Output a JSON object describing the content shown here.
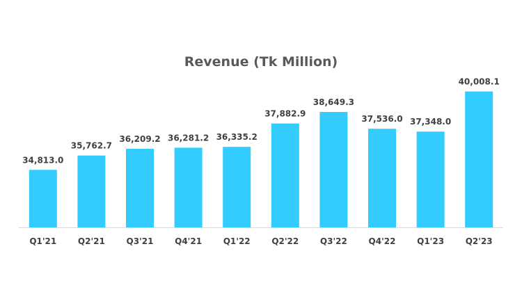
{
  "chart_data": {
    "type": "bar",
    "title": "Revenue (Tk Million)",
    "categories": [
      "Q1'21",
      "Q2'21",
      "Q3'21",
      "Q4'21",
      "Q1'22",
      "Q2'22",
      "Q3'22",
      "Q4'22",
      "Q1'23",
      "Q2'23"
    ],
    "values": [
      34813.0,
      35762.7,
      36209.2,
      36281.2,
      36335.2,
      37882.9,
      38649.3,
      37536.0,
      37348.0,
      40008.1
    ],
    "data_labels": [
      "34,813.0",
      "35,762.7",
      "36,209.2",
      "36,281.2",
      "36,335.2",
      "37,882.9",
      "38,649.3",
      "37,536.0",
      "37,348.0",
      "40,008.1"
    ],
    "xlabel": "",
    "ylabel": "",
    "ylim": [
      31000,
      41000
    ],
    "grid": false,
    "legend": "none",
    "bar_color": "#33CCFF",
    "axis_color": "#D9D9D9"
  }
}
